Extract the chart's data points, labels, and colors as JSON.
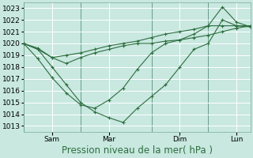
{
  "background_color": "#c8e8e0",
  "grid_color": "#b0d8d0",
  "line_color": "#2d6e3e",
  "ylim": [
    1012.5,
    1023.5
  ],
  "yticks": [
    1013,
    1014,
    1015,
    1016,
    1017,
    1018,
    1019,
    1020,
    1021,
    1022,
    1023
  ],
  "xlabel": "Pression niveau de la mer( hPa )",
  "xlabel_fontsize": 8.5,
  "tick_fontsize": 6.5,
  "day_labels": [
    "Sam",
    "Mar",
    "Dim",
    "Lun"
  ],
  "day_positions": [
    2,
    6,
    11,
    15
  ],
  "series1_x": [
    0,
    1,
    2,
    3,
    4,
    5,
    6,
    7,
    8,
    9,
    10,
    11,
    12,
    13,
    14,
    15,
    16
  ],
  "series1_y": [
    1020.0,
    1019.5,
    1018.8,
    1018.3,
    1018.8,
    1019.2,
    1019.5,
    1019.8,
    1020.0,
    1020.0,
    1020.2,
    1020.3,
    1020.5,
    1020.7,
    1021.0,
    1021.3,
    1021.5
  ],
  "series2_x": [
    0,
    1,
    2,
    3,
    4,
    5,
    6,
    7,
    8,
    9,
    10,
    11,
    12,
    13,
    14,
    15,
    16
  ],
  "series2_y": [
    1020.0,
    1019.6,
    1018.8,
    1019.0,
    1019.2,
    1019.5,
    1019.8,
    1020.0,
    1020.2,
    1020.5,
    1020.8,
    1021.0,
    1021.2,
    1021.5,
    1021.5,
    1021.5,
    1021.5
  ],
  "series3_x": [
    0,
    1,
    2,
    3,
    4,
    5,
    6,
    7,
    8,
    9,
    10,
    11,
    12,
    13,
    14,
    15,
    16
  ],
  "series3_y": [
    1020.0,
    1018.7,
    1017.1,
    1015.8,
    1014.8,
    1014.5,
    1015.2,
    1016.2,
    1017.8,
    1019.2,
    1020.0,
    1020.3,
    1020.8,
    1021.5,
    1023.1,
    1021.8,
    1021.4
  ],
  "series4_x": [
    0,
    1,
    2,
    3,
    4,
    5,
    6,
    7,
    8,
    9,
    10,
    11,
    12,
    13,
    14,
    15,
    16
  ],
  "series4_y": [
    1020.0,
    1019.5,
    1018.0,
    1016.5,
    1015.0,
    1014.2,
    1013.7,
    1013.3,
    1014.5,
    1015.5,
    1016.5,
    1018.0,
    1019.5,
    1020.0,
    1022.0,
    1021.5,
    1021.4
  ],
  "marker": "+",
  "marker_size": 3.5,
  "linewidth": 0.8,
  "vline_x": [
    0,
    4,
    9,
    13,
    16
  ],
  "xlim": [
    0,
    16
  ]
}
